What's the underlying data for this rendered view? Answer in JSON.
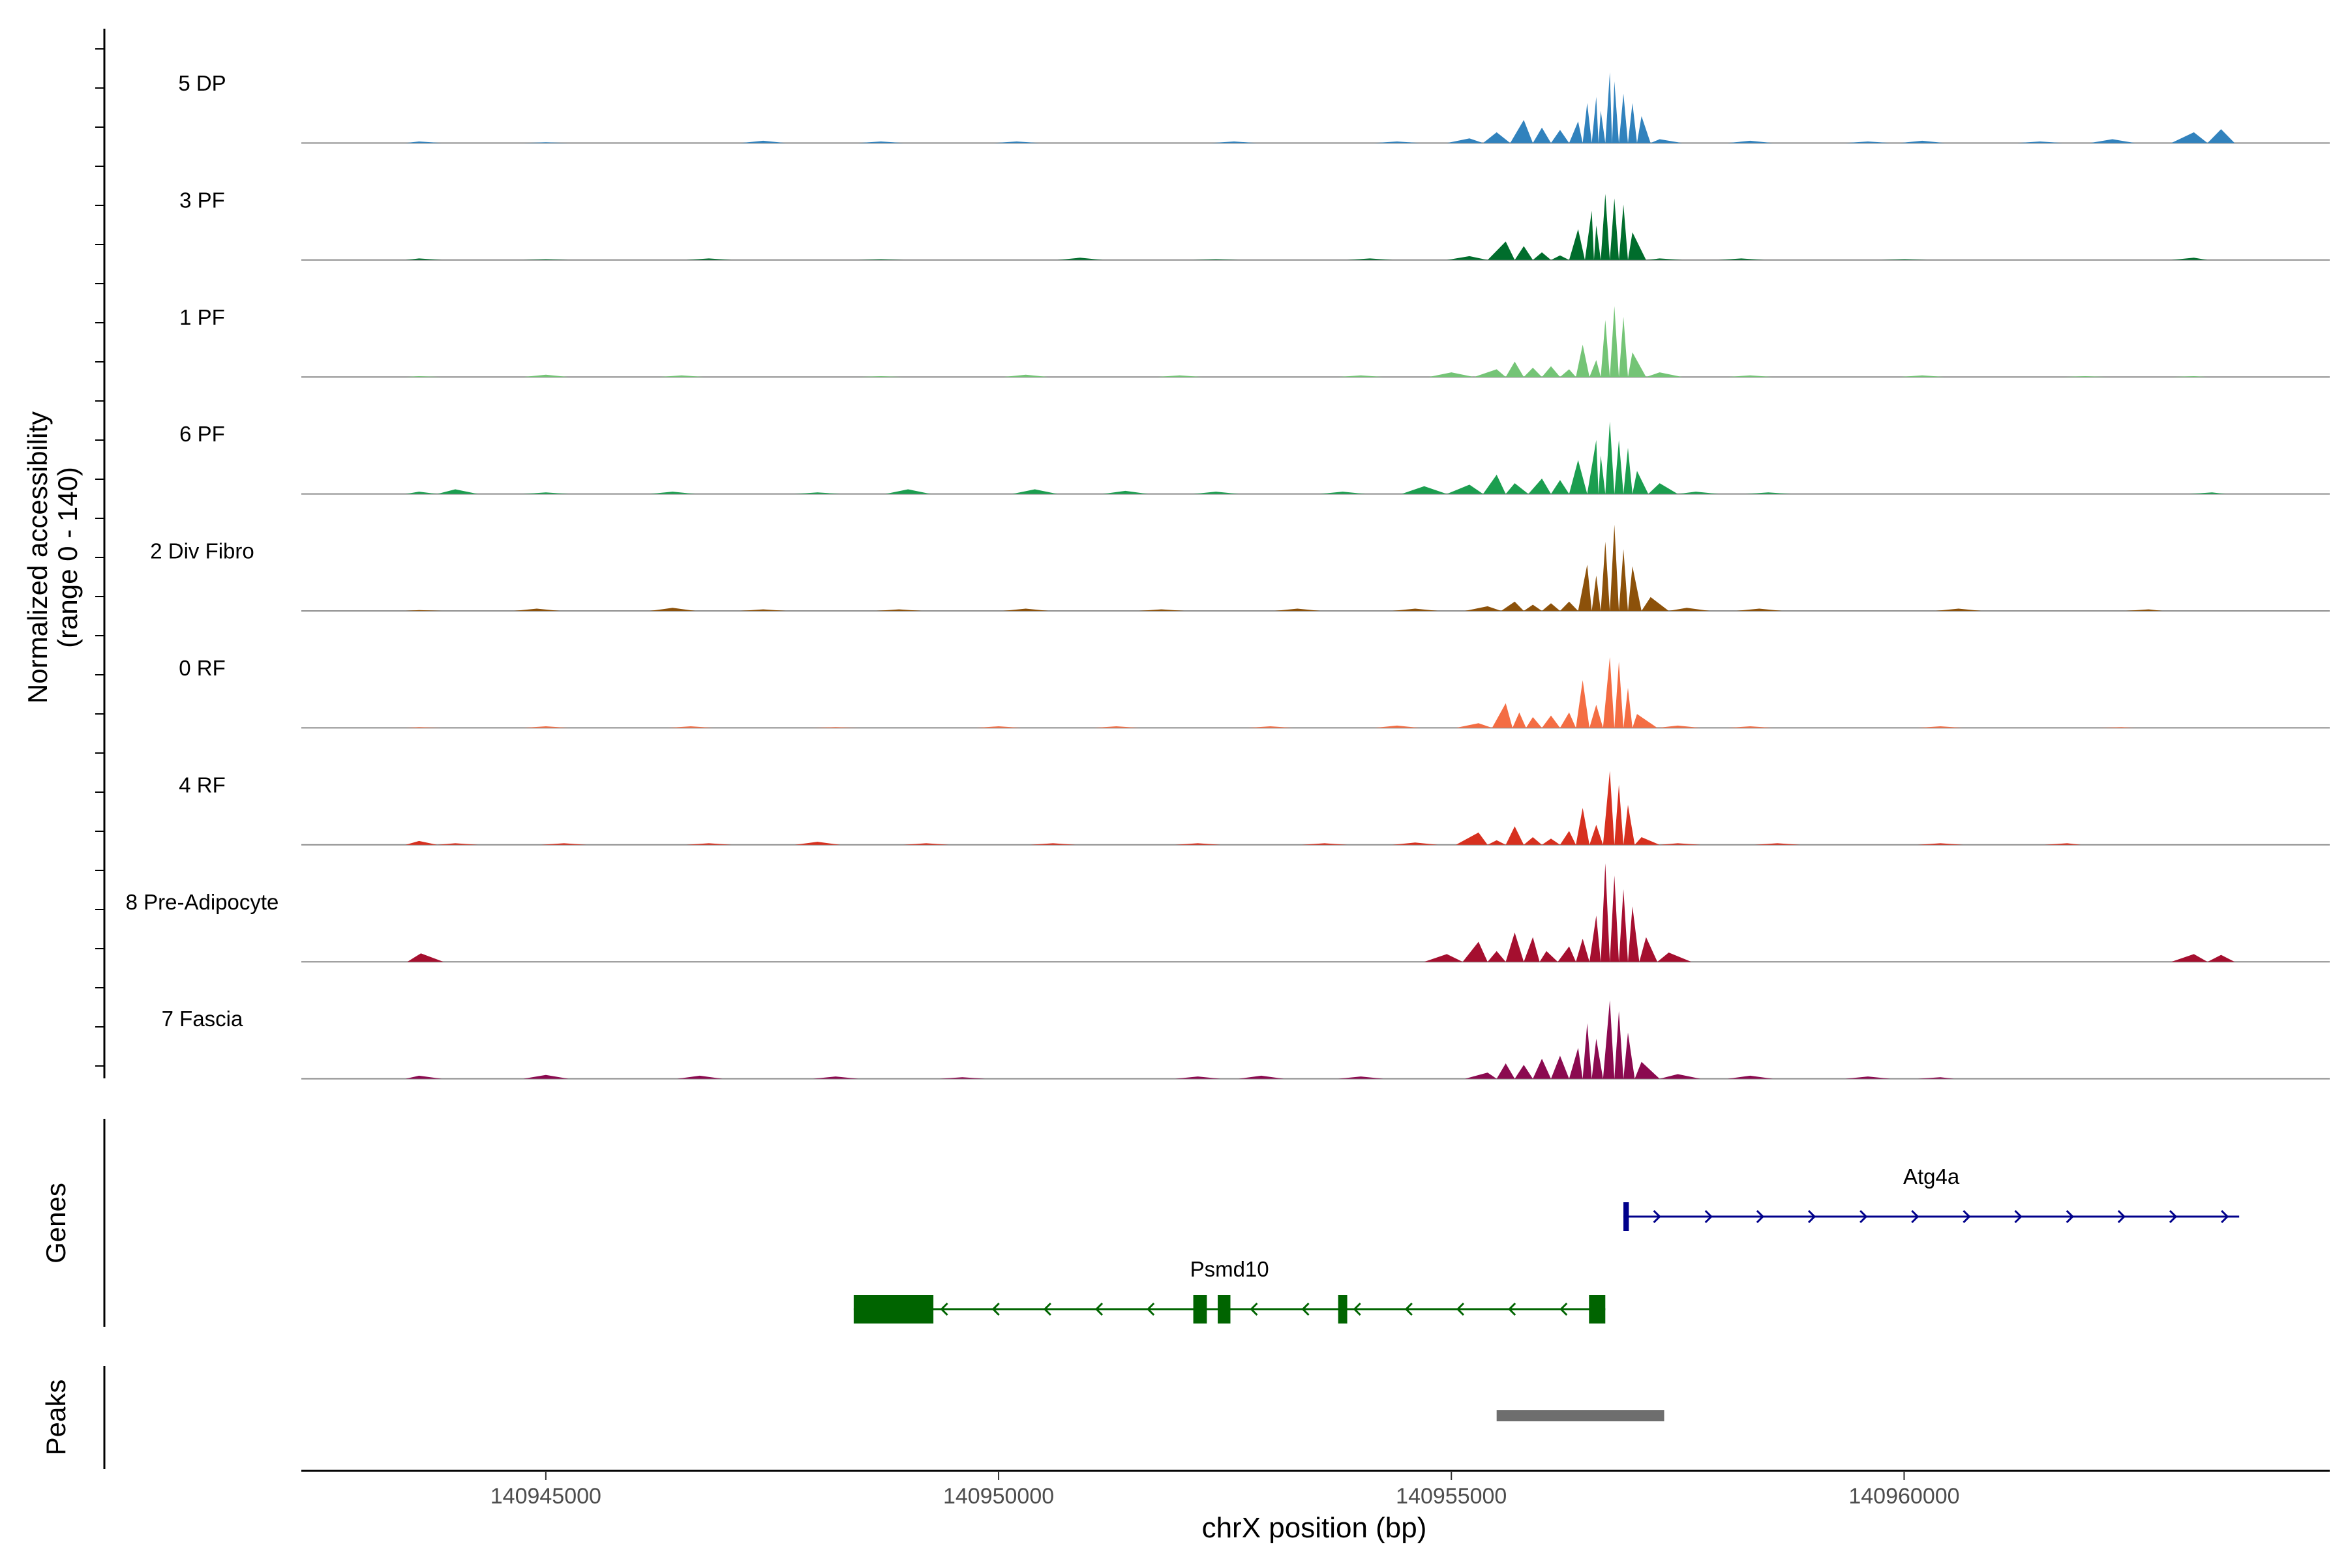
{
  "chart_data": {
    "type": "area",
    "title": "",
    "xlabel": "chrX position (bp)",
    "ylabel_line1": "Normalized accessibility",
    "ylabel_line2": "(range 0 - 140)",
    "ylim": [
      0,
      140
    ],
    "xlim": [
      140942300,
      140964700
    ],
    "x_ticks": [
      140945000,
      140950000,
      140955000,
      140960000
    ],
    "x_tick_labels": [
      "140945000",
      "140950000",
      "140955000",
      "140960000"
    ],
    "series": [
      {
        "name": "5 DP",
        "color": "#3182bd",
        "points": [
          [
            140943600,
            2
          ],
          [
            140945000,
            1
          ],
          [
            140947400,
            3
          ],
          [
            140948700,
            2
          ],
          [
            140950200,
            2
          ],
          [
            140952600,
            2
          ],
          [
            140954400,
            2
          ],
          [
            140955200,
            6
          ],
          [
            140955500,
            14
          ],
          [
            140955800,
            30
          ],
          [
            140956000,
            20
          ],
          [
            140956200,
            17
          ],
          [
            140956400,
            28
          ],
          [
            140956500,
            52
          ],
          [
            140956600,
            60
          ],
          [
            140956650,
            42
          ],
          [
            140956750,
            92
          ],
          [
            140956800,
            80
          ],
          [
            140956900,
            64
          ],
          [
            140957000,
            52
          ],
          [
            140957100,
            35
          ],
          [
            140957300,
            5
          ],
          [
            140958300,
            3
          ],
          [
            140959600,
            2
          ],
          [
            140960200,
            3
          ],
          [
            140961500,
            2
          ],
          [
            140962300,
            5
          ],
          [
            140963200,
            14
          ],
          [
            140963500,
            18
          ]
        ]
      },
      {
        "name": "3 PF",
        "color": "#006d2c",
        "points": [
          [
            140943600,
            2
          ],
          [
            140945000,
            1
          ],
          [
            140946800,
            2
          ],
          [
            140948700,
            1
          ],
          [
            140950900,
            3
          ],
          [
            140952400,
            1
          ],
          [
            140954100,
            2
          ],
          [
            140955200,
            5
          ],
          [
            140955600,
            24
          ],
          [
            140955800,
            18
          ],
          [
            140956000,
            10
          ],
          [
            140956200,
            6
          ],
          [
            140956400,
            40
          ],
          [
            140956550,
            64
          ],
          [
            140956600,
            45
          ],
          [
            140956700,
            86
          ],
          [
            140956800,
            80
          ],
          [
            140956900,
            72
          ],
          [
            140957000,
            36
          ],
          [
            140957300,
            2
          ],
          [
            140958200,
            2
          ],
          [
            140960000,
            1
          ],
          [
            140963200,
            3
          ]
        ]
      },
      {
        "name": "1 PF",
        "color": "#74c476",
        "points": [
          [
            140943600,
            1
          ],
          [
            140945000,
            3
          ],
          [
            140946500,
            2
          ],
          [
            140948700,
            1
          ],
          [
            140950300,
            3
          ],
          [
            140952000,
            2
          ],
          [
            140954000,
            2
          ],
          [
            140955000,
            6
          ],
          [
            140955500,
            10
          ],
          [
            140955700,
            20
          ],
          [
            140955900,
            12
          ],
          [
            140956100,
            14
          ],
          [
            140956300,
            10
          ],
          [
            140956450,
            42
          ],
          [
            140956600,
            22
          ],
          [
            140956700,
            74
          ],
          [
            140956800,
            92
          ],
          [
            140956900,
            78
          ],
          [
            140957000,
            32
          ],
          [
            140957300,
            6
          ],
          [
            140958300,
            2
          ],
          [
            140960200,
            2
          ],
          [
            140962000,
            1
          ],
          [
            140963200,
            1
          ]
        ]
      },
      {
        "name": "6 PF",
        "color": "#1b9e4f",
        "points": [
          [
            140943600,
            3
          ],
          [
            140944000,
            6
          ],
          [
            140945000,
            2
          ],
          [
            140946400,
            3
          ],
          [
            140948000,
            2
          ],
          [
            140949000,
            6
          ],
          [
            140950400,
            6
          ],
          [
            140951400,
            4
          ],
          [
            140952400,
            3
          ],
          [
            140953800,
            3
          ],
          [
            140954700,
            10
          ],
          [
            140955200,
            12
          ],
          [
            140955500,
            25
          ],
          [
            140955700,
            14
          ],
          [
            140956000,
            20
          ],
          [
            140956200,
            18
          ],
          [
            140956400,
            44
          ],
          [
            140956600,
            70
          ],
          [
            140956650,
            50
          ],
          [
            140956750,
            94
          ],
          [
            140956850,
            70
          ],
          [
            140956950,
            60
          ],
          [
            140957050,
            30
          ],
          [
            140957300,
            14
          ],
          [
            140957700,
            3
          ],
          [
            140958500,
            2
          ],
          [
            140963400,
            2
          ]
        ]
      },
      {
        "name": "2 Div Fibro",
        "color": "#8c510a",
        "points": [
          [
            140943600,
            1
          ],
          [
            140944900,
            3
          ],
          [
            140946400,
            4
          ],
          [
            140947400,
            2
          ],
          [
            140948900,
            2
          ],
          [
            140950300,
            3
          ],
          [
            140951800,
            2
          ],
          [
            140953300,
            3
          ],
          [
            140954600,
            3
          ],
          [
            140955400,
            6
          ],
          [
            140955700,
            12
          ],
          [
            140955900,
            8
          ],
          [
            140956100,
            10
          ],
          [
            140956300,
            12
          ],
          [
            140956500,
            60
          ],
          [
            140956600,
            46
          ],
          [
            140956700,
            90
          ],
          [
            140956800,
            112
          ],
          [
            140956900,
            80
          ],
          [
            140957000,
            58
          ],
          [
            140957200,
            18
          ],
          [
            140957600,
            4
          ],
          [
            140958400,
            3
          ],
          [
            140960600,
            3
          ],
          [
            140962700,
            2
          ]
        ]
      },
      {
        "name": "0 RF",
        "color": "#f46d43",
        "points": [
          [
            140943600,
            1
          ],
          [
            140945000,
            2
          ],
          [
            140946600,
            2
          ],
          [
            140948200,
            1
          ],
          [
            140950000,
            2
          ],
          [
            140951300,
            2
          ],
          [
            140953000,
            2
          ],
          [
            140954400,
            3
          ],
          [
            140955300,
            6
          ],
          [
            140955600,
            32
          ],
          [
            140955750,
            20
          ],
          [
            140955900,
            14
          ],
          [
            140956100,
            16
          ],
          [
            140956300,
            20
          ],
          [
            140956450,
            62
          ],
          [
            140956600,
            30
          ],
          [
            140956750,
            92
          ],
          [
            140956850,
            86
          ],
          [
            140956950,
            52
          ],
          [
            140957050,
            18
          ],
          [
            140957500,
            3
          ],
          [
            140958300,
            2
          ],
          [
            140960400,
            2
          ],
          [
            140962400,
            1
          ]
        ]
      },
      {
        "name": "4 RF",
        "color": "#d7301f",
        "points": [
          [
            140943600,
            5
          ],
          [
            140944000,
            2
          ],
          [
            140945200,
            2
          ],
          [
            140946800,
            2
          ],
          [
            140948000,
            4
          ],
          [
            140949200,
            2
          ],
          [
            140950600,
            2
          ],
          [
            140952200,
            2
          ],
          [
            140953600,
            2
          ],
          [
            140954600,
            3
          ],
          [
            140955300,
            16
          ],
          [
            140955500,
            6
          ],
          [
            140955700,
            24
          ],
          [
            140955900,
            10
          ],
          [
            140956100,
            8
          ],
          [
            140956300,
            18
          ],
          [
            140956450,
            48
          ],
          [
            140956600,
            26
          ],
          [
            140956750,
            96
          ],
          [
            140956850,
            78
          ],
          [
            140956950,
            52
          ],
          [
            140957100,
            10
          ],
          [
            140957500,
            2
          ],
          [
            140958600,
            2
          ],
          [
            140960400,
            2
          ],
          [
            140961800,
            2
          ]
        ]
      },
      {
        "name": "8 Pre-Adipocyte",
        "color": "#a50f2f",
        "points": [
          [
            140943620,
            11
          ],
          [
            140954950,
            10
          ],
          [
            140955300,
            26
          ],
          [
            140955500,
            14
          ],
          [
            140955700,
            38
          ],
          [
            140955900,
            32
          ],
          [
            140956050,
            14
          ],
          [
            140956300,
            20
          ],
          [
            140956450,
            30
          ],
          [
            140956600,
            60
          ],
          [
            140956700,
            128
          ],
          [
            140956800,
            112
          ],
          [
            140956900,
            94
          ],
          [
            140957000,
            72
          ],
          [
            140957150,
            32
          ],
          [
            140957400,
            12
          ],
          [
            140963200,
            10
          ],
          [
            140963500,
            9
          ]
        ]
      },
      {
        "name": "7 Fascia",
        "color": "#8b0a50",
        "points": [
          [
            140943600,
            4
          ],
          [
            140945000,
            5
          ],
          [
            140946700,
            4
          ],
          [
            140948200,
            3
          ],
          [
            140949600,
            2
          ],
          [
            140952200,
            3
          ],
          [
            140952900,
            4
          ],
          [
            140954000,
            3
          ],
          [
            140955400,
            8
          ],
          [
            140955600,
            20
          ],
          [
            140955800,
            18
          ],
          [
            140956000,
            26
          ],
          [
            140956200,
            30
          ],
          [
            140956400,
            40
          ],
          [
            140956500,
            72
          ],
          [
            140956600,
            52
          ],
          [
            140956750,
            102
          ],
          [
            140956850,
            88
          ],
          [
            140956950,
            60
          ],
          [
            140957100,
            22
          ],
          [
            140957500,
            6
          ],
          [
            140958300,
            4
          ],
          [
            140959600,
            3
          ],
          [
            140960400,
            2
          ]
        ]
      }
    ],
    "genes": [
      {
        "name": "Atg4a",
        "strand": "+",
        "start": 140956900,
        "end": 140963700,
        "color": "#00008b",
        "exons": [
          [
            140956900,
            140956960
          ]
        ]
      },
      {
        "name": "Psmd10",
        "strand": "-",
        "start": 140948400,
        "end": 140956700,
        "color": "#006400",
        "exons": [
          [
            140948400,
            140949280
          ],
          [
            140952150,
            140952300
          ],
          [
            140952420,
            140952560
          ],
          [
            140953750,
            140953850
          ],
          [
            140956520,
            140956700
          ]
        ]
      }
    ],
    "peaks": [
      {
        "start": 140955500,
        "end": 140957350,
        "color": "#6e6e6e"
      }
    ],
    "tracks": [
      "Genes",
      "Peaks"
    ]
  }
}
